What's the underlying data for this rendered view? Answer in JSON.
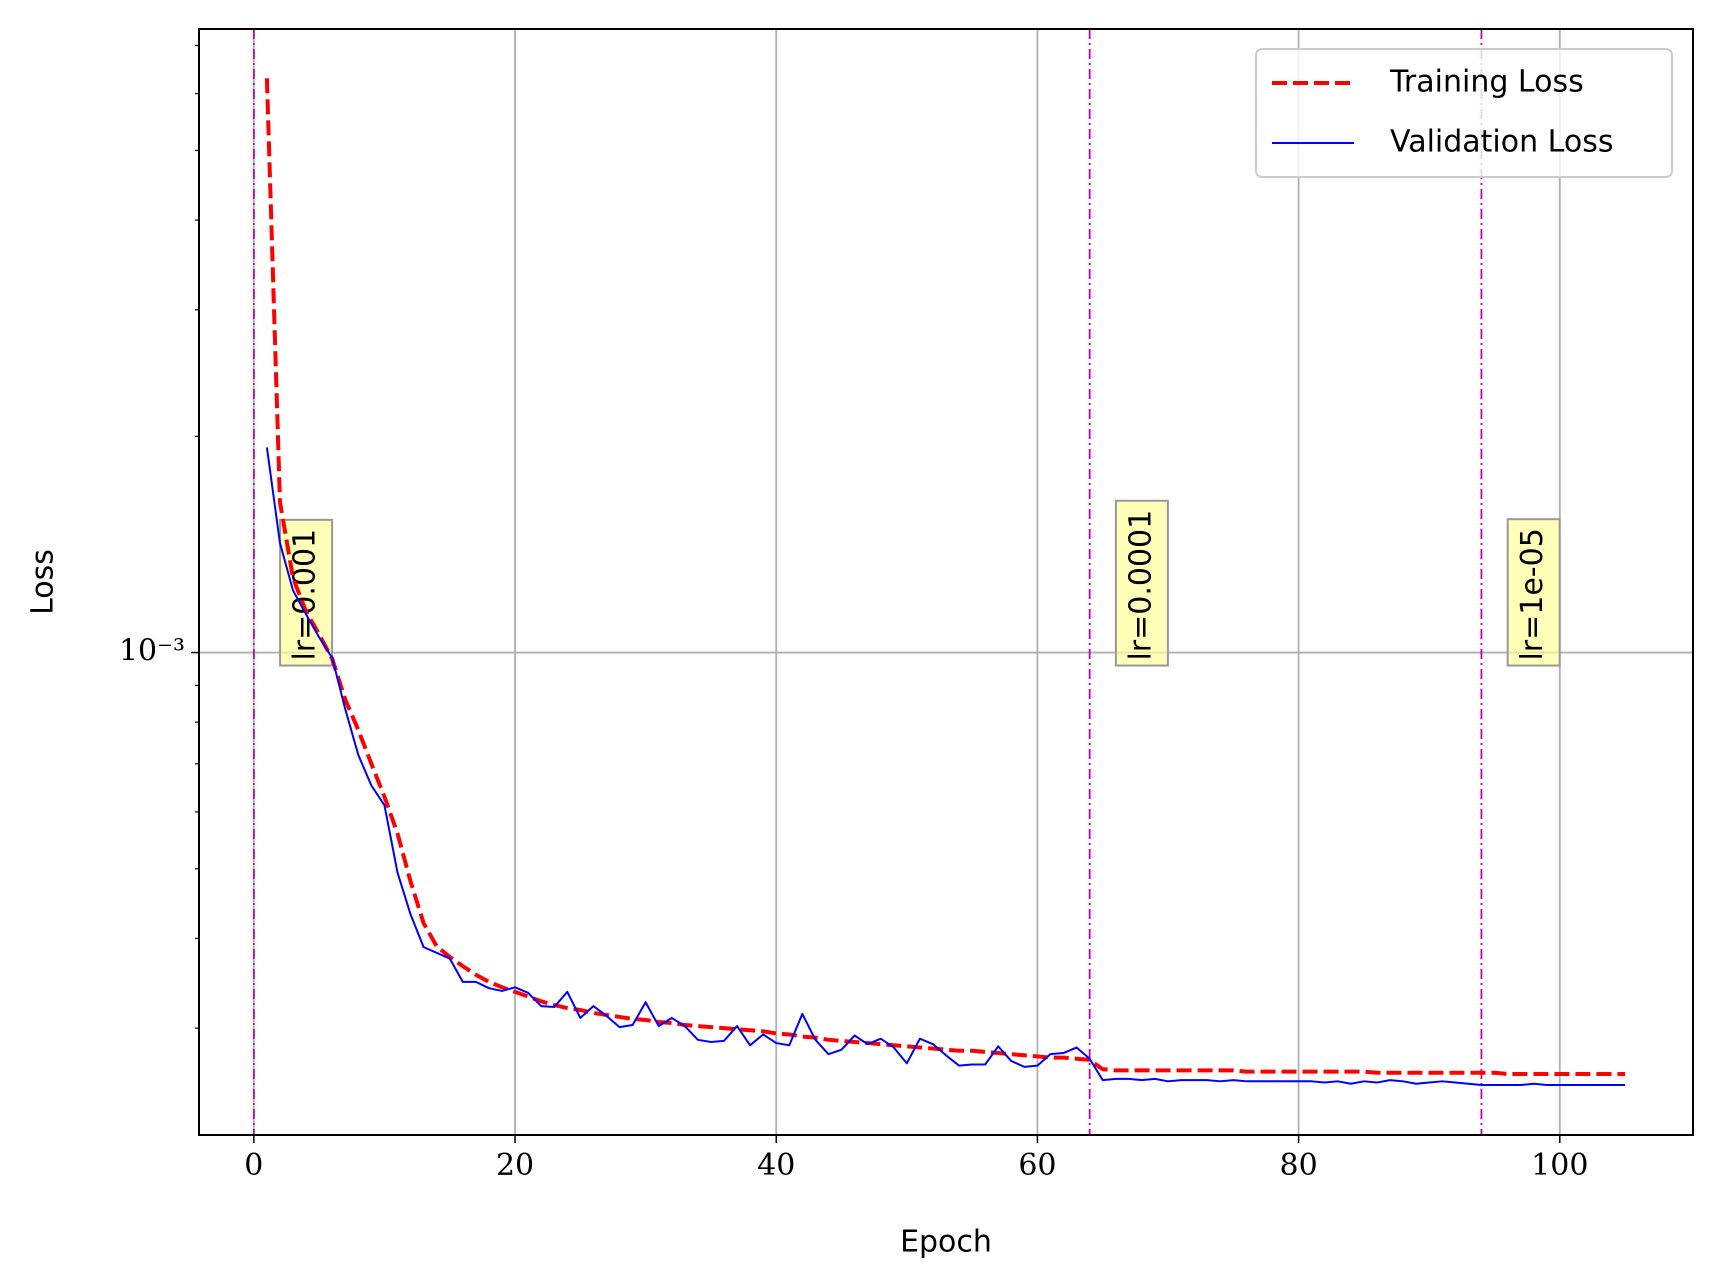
{
  "chart_data": {
    "type": "line",
    "xlabel": "Epoch",
    "ylabel": "Loss",
    "x": [
      1,
      2,
      3,
      4,
      5,
      6,
      7,
      8,
      9,
      10,
      11,
      12,
      13,
      14,
      15,
      16,
      17,
      18,
      19,
      20,
      21,
      22,
      23,
      24,
      25,
      26,
      27,
      28,
      29,
      30,
      31,
      32,
      33,
      34,
      35,
      36,
      37,
      38,
      39,
      40,
      41,
      42,
      43,
      44,
      45,
      46,
      47,
      48,
      49,
      50,
      51,
      52,
      53,
      54,
      55,
      56,
      57,
      58,
      59,
      60,
      61,
      62,
      63,
      64,
      65,
      66,
      67,
      68,
      69,
      70,
      71,
      72,
      73,
      74,
      75,
      76,
      77,
      78,
      79,
      80,
      81,
      82,
      83,
      84,
      85,
      86,
      87,
      88,
      89,
      90,
      91,
      92,
      93,
      94,
      95,
      96,
      97,
      98,
      99,
      100,
      101,
      102,
      103,
      104,
      105
    ],
    "series": [
      {
        "name": "Training Loss",
        "color": "#ff0000",
        "dash": true,
        "values": [
          0.0063,
          0.00162,
          0.00127,
          0.00114,
          0.00106,
          0.00098,
          0.00086,
          0.00078,
          0.0007,
          0.00063,
          0.00056,
          0.00048,
          0.00042,
          0.00039,
          0.000377,
          0.000366,
          0.000356,
          0.000348,
          0.000342,
          0.000337,
          0.000332,
          0.000327,
          0.000323,
          0.00032,
          0.000318,
          0.000315,
          0.000313,
          0.000311,
          0.000309,
          0.000308,
          0.000306,
          0.000305,
          0.000303,
          0.000302,
          0.000301,
          0.0003,
          0.000299,
          0.000298,
          0.000297,
          0.000295,
          0.000294,
          0.000292,
          0.000291,
          0.000289,
          0.000288,
          0.000287,
          0.000286,
          0.000285,
          0.000284,
          0.000283,
          0.000282,
          0.000281,
          0.00028,
          0.000279,
          0.000279,
          0.000278,
          0.000277,
          0.000276,
          0.000275,
          0.000274,
          0.000273,
          0.000273,
          0.000272,
          0.000271,
          0.000263,
          0.000262,
          0.000262,
          0.000262,
          0.000262,
          0.000262,
          0.000262,
          0.000262,
          0.000262,
          0.000262,
          0.000262,
          0.000261,
          0.000261,
          0.000261,
          0.000261,
          0.000261,
          0.000261,
          0.000261,
          0.000261,
          0.000261,
          0.000261,
          0.00026,
          0.00026,
          0.00026,
          0.00026,
          0.00026,
          0.00026,
          0.00026,
          0.00026,
          0.00026,
          0.00026,
          0.000259,
          0.000259,
          0.000259,
          0.000259,
          0.000259,
          0.000259,
          0.000259,
          0.000259,
          0.000259,
          0.000259
        ]
      },
      {
        "name": "Validation Loss",
        "color": "#0000ff",
        "dash": false,
        "values": [
          0.00193,
          0.00142,
          0.00122,
          0.00113,
          0.00105,
          0.000983,
          0.000834,
          0.00072,
          0.000653,
          0.000613,
          0.000494,
          0.000432,
          0.000389,
          0.000382,
          0.000375,
          0.000348,
          0.000348,
          0.000341,
          0.000338,
          0.000342,
          0.000336,
          0.000322,
          0.000321,
          0.000337,
          0.00031,
          0.000322,
          0.000312,
          0.000301,
          0.000303,
          0.000326,
          0.000302,
          0.00031,
          0.000302,
          0.000289,
          0.000287,
          0.000288,
          0.000302,
          0.000284,
          0.000294,
          0.000286,
          0.000284,
          0.000314,
          0.000289,
          0.000276,
          0.00028,
          0.000293,
          0.000285,
          0.00029,
          0.000282,
          0.000268,
          0.00029,
          0.000285,
          0.000275,
          0.000266,
          0.000267,
          0.000267,
          0.000283,
          0.00027,
          0.000265,
          0.000266,
          0.000276,
          0.000277,
          0.000282,
          0.000272,
          0.000254,
          0.000255,
          0.000255,
          0.000254,
          0.000255,
          0.000253,
          0.000254,
          0.000254,
          0.000254,
          0.000253,
          0.000254,
          0.000253,
          0.000253,
          0.000253,
          0.000253,
          0.000253,
          0.000253,
          0.000252,
          0.000253,
          0.000251,
          0.000253,
          0.000252,
          0.000254,
          0.000253,
          0.000251,
          0.000252,
          0.000253,
          0.000252,
          0.000251,
          0.00025,
          0.00025,
          0.00025,
          0.00025,
          0.000251,
          0.00025,
          0.00025,
          0.00025,
          0.00025,
          0.00025,
          0.00025,
          0.00025
        ]
      }
    ],
    "xlim": [
      -4.2,
      110.2
    ],
    "xticks": [
      0,
      20,
      40,
      60,
      80,
      100
    ],
    "yscale": "log",
    "ylim": [
      0.000213,
      0.00738
    ],
    "yticks": [
      {
        "value": 0.001,
        "label": "10⁻³"
      }
    ],
    "yminorticks": [
      0.0003,
      0.0004,
      0.0005,
      0.0006,
      0.0007,
      0.0008,
      0.0009,
      0.002,
      0.003,
      0.004,
      0.005,
      0.006,
      0.007
    ],
    "grid": true,
    "legend": "upper right",
    "vlines": [
      {
        "x": 0,
        "label": "lr=0.001"
      },
      {
        "x": 64,
        "label": "lr=0.0001"
      },
      {
        "x": 94,
        "label": "lr=1e-05"
      }
    ],
    "vline_color": "#bf00bf",
    "annotation_y": 0.001,
    "annotation_offset": 4
  }
}
